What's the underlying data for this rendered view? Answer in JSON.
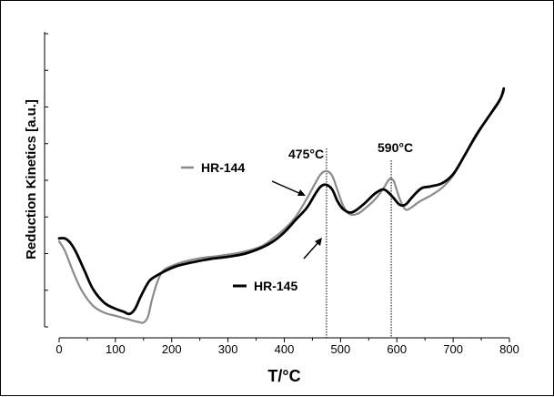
{
  "colors": {
    "HR-144": "#8a8a8a",
    "HR-145": "#000000",
    "axis": "#000000",
    "marker_line": "#000000"
  },
  "chart_data": {
    "type": "line",
    "title": "",
    "xlabel": "T/°C",
    "ylabel": "Reduction Kinetics [a.u.]",
    "xlim": [
      0,
      800
    ],
    "ylim": [
      0,
      10
    ],
    "x_ticks": [
      0,
      100,
      200,
      300,
      400,
      500,
      600,
      700,
      800
    ],
    "y_tick_labels_shown": false,
    "y_tick_count": 8,
    "grid": false,
    "legend": "inline labels with arrows",
    "series": [
      {
        "name": "HR-144",
        "color": "#8a8a8a",
        "x": [
          0,
          10,
          25,
          40,
          60,
          80,
          100,
          120,
          140,
          150,
          158,
          165,
          175,
          185,
          200,
          220,
          250,
          280,
          300,
          330,
          360,
          380,
          400,
          420,
          440,
          455,
          465,
          475,
          485,
          495,
          505,
          515,
          530,
          545,
          560,
          575,
          585,
          590,
          595,
          605,
          615,
          625,
          640,
          660,
          680,
          700,
          720,
          740,
          760,
          780,
          790
        ],
        "y": [
          3.15,
          2.85,
          2.15,
          1.55,
          1.05,
          0.82,
          0.72,
          0.62,
          0.52,
          0.5,
          0.7,
          1.25,
          1.85,
          2.2,
          2.35,
          2.48,
          2.6,
          2.67,
          2.72,
          2.82,
          3.0,
          3.25,
          3.55,
          3.95,
          4.55,
          5.05,
          5.35,
          5.45,
          5.3,
          4.8,
          4.3,
          4.05,
          4.05,
          4.25,
          4.5,
          4.85,
          5.15,
          5.2,
          5.1,
          4.55,
          4.2,
          4.25,
          4.45,
          4.65,
          4.9,
          5.3,
          5.95,
          6.55,
          7.15,
          7.65,
          8.05
        ]
      },
      {
        "name": "HR-145",
        "color": "#000000",
        "x": [
          0,
          10,
          20,
          30,
          45,
          60,
          80,
          100,
          115,
          125,
          135,
          145,
          160,
          175,
          190,
          210,
          240,
          270,
          300,
          330,
          360,
          380,
          400,
          420,
          440,
          455,
          465,
          475,
          485,
          495,
          505,
          520,
          540,
          560,
          575,
          585,
          595,
          605,
          615,
          625,
          635,
          645,
          660,
          680,
          700,
          720,
          740,
          760,
          775,
          785,
          790
        ],
        "y": [
          3.25,
          3.25,
          3.1,
          2.8,
          2.2,
          1.6,
          1.15,
          0.95,
          0.85,
          0.78,
          0.95,
          1.35,
          1.85,
          2.05,
          2.2,
          2.35,
          2.48,
          2.58,
          2.65,
          2.75,
          2.95,
          3.15,
          3.45,
          3.85,
          4.25,
          4.7,
          4.95,
          5.0,
          4.85,
          4.45,
          4.2,
          4.1,
          4.35,
          4.7,
          4.85,
          4.75,
          4.55,
          4.35,
          4.35,
          4.55,
          4.75,
          4.9,
          4.95,
          5.05,
          5.35,
          5.95,
          6.6,
          7.15,
          7.55,
          7.85,
          8.15
        ]
      }
    ],
    "annotations": [
      {
        "text": "475°C",
        "x": 475
      },
      {
        "text": "590°C",
        "x": 590
      }
    ],
    "series_labels": [
      {
        "text": "HR-144",
        "series": "HR-144"
      },
      {
        "text": "HR-145",
        "series": "HR-145"
      }
    ]
  }
}
